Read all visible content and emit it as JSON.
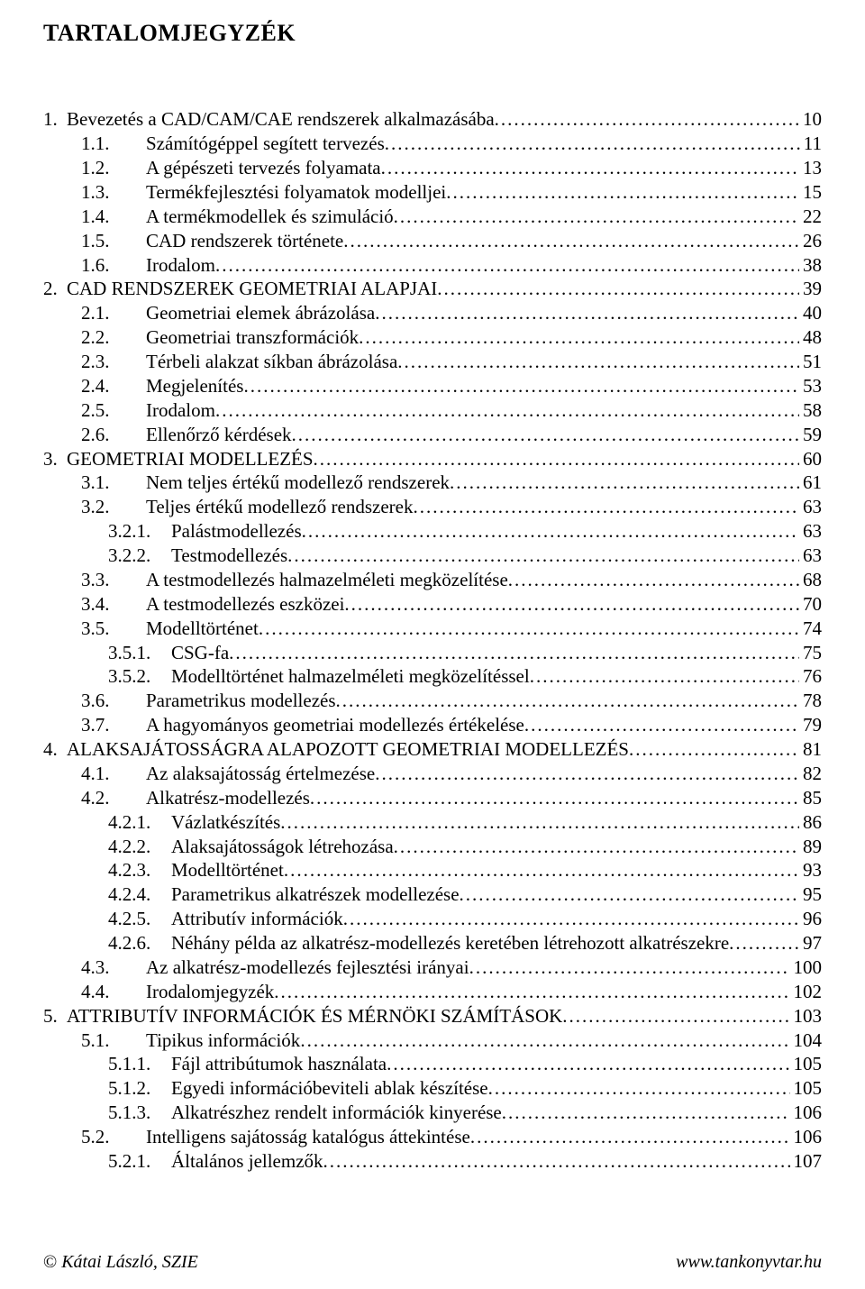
{
  "title": "TARTALOMJEGYZÉK",
  "toc": [
    {
      "indent": 0,
      "num": "1.",
      "nw": "w0",
      "text": "Bevezetés a CAD/CAM/CAE rendszerek alkalmazásába",
      "page": "10"
    },
    {
      "indent": 1,
      "num": "1.1.",
      "nw": "w1",
      "text": "Számítógéppel segített tervezés",
      "page": "11"
    },
    {
      "indent": 1,
      "num": "1.2.",
      "nw": "w1",
      "text": "A gépészeti tervezés folyamata",
      "page": "13"
    },
    {
      "indent": 1,
      "num": "1.3.",
      "nw": "w1",
      "text": "Termékfejlesztési folyamatok modelljei",
      "page": "15"
    },
    {
      "indent": 1,
      "num": "1.4.",
      "nw": "w1",
      "text": "A termékmodellek és szimuláció",
      "page": "22"
    },
    {
      "indent": 1,
      "num": "1.5.",
      "nw": "w1",
      "text": "CAD rendszerek története",
      "page": "26"
    },
    {
      "indent": 1,
      "num": "1.6.",
      "nw": "w1",
      "text": "Irodalom",
      "page": "38"
    },
    {
      "indent": 0,
      "num": "2.",
      "nw": "w0",
      "text": "CAD RENDSZEREK GEOMETRIAI ALAPJAI",
      "page": "39"
    },
    {
      "indent": 1,
      "num": "2.1.",
      "nw": "w1",
      "text": "Geometriai elemek ábrázolása",
      "page": "40"
    },
    {
      "indent": 1,
      "num": "2.2.",
      "nw": "w1",
      "text": "Geometriai transzformációk",
      "page": "48"
    },
    {
      "indent": 1,
      "num": "2.3.",
      "nw": "w1",
      "text": "Térbeli alakzat síkban ábrázolása",
      "page": "51"
    },
    {
      "indent": 1,
      "num": "2.4.",
      "nw": "w1",
      "text": "Megjelenítés",
      "page": "53"
    },
    {
      "indent": 1,
      "num": "2.5.",
      "nw": "w1",
      "text": "Irodalom",
      "page": "58"
    },
    {
      "indent": 1,
      "num": "2.6.",
      "nw": "w1",
      "text": "Ellenőrző kérdések",
      "page": "59"
    },
    {
      "indent": 0,
      "num": "3.",
      "nw": "w0",
      "text": "GEOMETRIAI MODELLEZÉS",
      "page": "60"
    },
    {
      "indent": 1,
      "num": "3.1.",
      "nw": "w1",
      "text": "Nem teljes értékű modellező rendszerek",
      "page": "61"
    },
    {
      "indent": 1,
      "num": "3.2.",
      "nw": "w1",
      "text": "Teljes értékű modellező rendszerek",
      "page": "63"
    },
    {
      "indent": 2,
      "num": "3.2.1.",
      "nw": "w2",
      "text": "Palástmodellezés",
      "page": "63"
    },
    {
      "indent": 2,
      "num": "3.2.2.",
      "nw": "w2",
      "text": "Testmodellezés",
      "page": "63"
    },
    {
      "indent": 1,
      "num": "3.3.",
      "nw": "w1",
      "text": "A testmodellezés halmazelméleti megközelítése",
      "page": "68"
    },
    {
      "indent": 1,
      "num": "3.4.",
      "nw": "w1",
      "text": "A testmodellezés eszközei",
      "page": "70"
    },
    {
      "indent": 1,
      "num": "3.5.",
      "nw": "w1",
      "text": "Modelltörténet",
      "page": "74"
    },
    {
      "indent": 2,
      "num": "3.5.1.",
      "nw": "w2",
      "text": "CSG-fa",
      "page": "75"
    },
    {
      "indent": 2,
      "num": "3.5.2.",
      "nw": "w2",
      "text": "Modelltörténet halmazelméleti megközelítéssel",
      "page": "76"
    },
    {
      "indent": 1,
      "num": "3.6.",
      "nw": "w1",
      "text": "Parametrikus modellezés",
      "page": "78"
    },
    {
      "indent": 1,
      "num": "3.7.",
      "nw": "w1",
      "text": "A hagyományos geometriai modellezés értékelése",
      "page": "79"
    },
    {
      "indent": 0,
      "num": "4.",
      "nw": "w0",
      "text": "ALAKSAJÁTOSSÁGRA ALAPOZOTT GEOMETRIAI MODELLEZÉS",
      "page": "81"
    },
    {
      "indent": 1,
      "num": "4.1.",
      "nw": "w1",
      "text": "Az alaksajátosság értelmezése",
      "page": "82"
    },
    {
      "indent": 1,
      "num": "4.2.",
      "nw": "w1",
      "text": "Alkatrész-modellezés",
      "page": "85"
    },
    {
      "indent": 2,
      "num": "4.2.1.",
      "nw": "w2",
      "text": "Vázlatkészítés",
      "page": "86"
    },
    {
      "indent": 2,
      "num": "4.2.2.",
      "nw": "w2",
      "text": "Alaksajátosságok létrehozása",
      "page": "89"
    },
    {
      "indent": 2,
      "num": "4.2.3.",
      "nw": "w2",
      "text": "Modelltörténet",
      "page": "93"
    },
    {
      "indent": 2,
      "num": "4.2.4.",
      "nw": "w2",
      "text": "Parametrikus alkatrészek modellezése",
      "page": "95"
    },
    {
      "indent": 2,
      "num": "4.2.5.",
      "nw": "w2",
      "text": "Attributív információk",
      "page": "96"
    },
    {
      "indent": 2,
      "num": "4.2.6.",
      "nw": "w2",
      "text": "Néhány példa az alkatrész-modellezés keretében létrehozott alkatrészekre",
      "page": "97"
    },
    {
      "indent": 1,
      "num": "4.3.",
      "nw": "w1",
      "text": "Az alkatrész-modellezés fejlesztési irányai",
      "page": "100"
    },
    {
      "indent": 1,
      "num": "4.4.",
      "nw": "w1",
      "text": "Irodalomjegyzék",
      "page": "102"
    },
    {
      "indent": 0,
      "num": "5.",
      "nw": "w0",
      "text": "ATTRIBUTÍV INFORMÁCIÓK ÉS MÉRNÖKI  SZÁMÍTÁSOK",
      "page": "103"
    },
    {
      "indent": 1,
      "num": "5.1.",
      "nw": "w1",
      "text": "Tipikus információk",
      "page": "104"
    },
    {
      "indent": 2,
      "num": "5.1.1.",
      "nw": "w2",
      "text": "Fájl attribútumok használata",
      "page": "105"
    },
    {
      "indent": 2,
      "num": "5.1.2.",
      "nw": "w2",
      "text": "Egyedi információbeviteli ablak készítése",
      "page": "105"
    },
    {
      "indent": 2,
      "num": "5.1.3.",
      "nw": "w2",
      "text": "Alkatrészhez rendelt információk kinyerése",
      "page": "106"
    },
    {
      "indent": 1,
      "num": "5.2.",
      "nw": "w1",
      "text": "Intelligens sajátosság katalógus áttekintése",
      "page": "106"
    },
    {
      "indent": 2,
      "num": "5.2.1.",
      "nw": "w2",
      "text": "Általános jellemzők",
      "page": "107"
    }
  ],
  "footer": {
    "left": " Kátai László, SZIE",
    "right": "www.tankonyvtar.hu"
  }
}
